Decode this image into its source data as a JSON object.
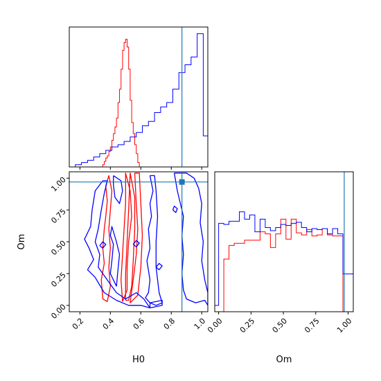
{
  "chart_data": [
    {
      "panel": "H0-marginal",
      "type": "histogram",
      "xlim": [
        0.13,
        1.04
      ],
      "x_ticks": [
        0.2,
        0.4,
        0.6,
        0.8,
        1.0
      ],
      "truth": 0.87,
      "series": [
        {
          "color": "#ff0000",
          "bins": [
            0.34,
            0.35,
            0.36,
            0.37,
            0.38,
            0.39,
            0.4,
            0.41,
            0.42,
            0.43,
            0.44,
            0.45,
            0.46,
            0.47,
            0.48,
            0.49,
            0.5,
            0.51,
            0.52,
            0.53,
            0.54,
            0.55,
            0.56,
            0.57,
            0.58,
            0.59,
            0.6
          ],
          "counts": [
            0,
            2,
            5,
            8,
            10,
            14,
            18,
            24,
            30,
            36,
            44,
            58,
            70,
            88,
            105,
            112,
            115,
            108,
            88,
            60,
            40,
            30,
            20,
            12,
            4,
            0
          ]
        },
        {
          "color": "#0000ff",
          "bins": [
            0.13,
            0.17,
            0.21,
            0.25,
            0.29,
            0.33,
            0.37,
            0.41,
            0.45,
            0.49,
            0.53,
            0.57,
            0.61,
            0.65,
            0.69,
            0.73,
            0.77,
            0.81,
            0.85,
            0.89,
            0.93,
            0.97,
            1.01,
            1.04
          ],
          "counts": [
            0,
            2,
            4,
            6,
            9,
            12,
            15,
            18,
            20,
            23,
            27,
            31,
            37,
            41,
            49,
            54,
            58,
            70,
            85,
            92,
            99,
            120,
            28
          ]
        }
      ]
    },
    {
      "panel": "Om-marginal",
      "type": "histogram",
      "xlim": [
        -0.03,
        1.04
      ],
      "x_ticks": [
        0.0,
        0.25,
        0.5,
        0.75,
        1.0
      ],
      "x_tick_labels": [
        "0.00",
        "0.25",
        "0.50",
        "0.75",
        "1.00"
      ],
      "xlabel": "Om",
      "truth": 0.97,
      "series": [
        {
          "color": "#ff0000",
          "bins": [
            0.0,
            0.04,
            0.08,
            0.12,
            0.16,
            0.2,
            0.24,
            0.28,
            0.32,
            0.36,
            0.4,
            0.44,
            0.48,
            0.52,
            0.56,
            0.6,
            0.64,
            0.68,
            0.72,
            0.76,
            0.8,
            0.84,
            0.88,
            0.92,
            0.96,
            1.0
          ],
          "counts": [
            0,
            50,
            63,
            65,
            65,
            68,
            68,
            68,
            76,
            74,
            61,
            74,
            88,
            69,
            88,
            75,
            73,
            78,
            72,
            73,
            79,
            73,
            72,
            72,
            0
          ]
        },
        {
          "color": "#0000ff",
          "bins": [
            -0.03,
            0.0,
            0.04,
            0.08,
            0.12,
            0.16,
            0.2,
            0.24,
            0.28,
            0.32,
            0.36,
            0.4,
            0.44,
            0.48,
            0.52,
            0.56,
            0.6,
            0.64,
            0.68,
            0.72,
            0.76,
            0.8,
            0.84,
            0.88,
            0.92,
            0.96,
            1.0,
            1.04
          ],
          "counts": [
            6,
            84,
            83,
            86,
            86,
            95,
            88,
            92,
            76,
            88,
            80,
            77,
            80,
            83,
            82,
            84,
            85,
            80,
            76,
            79,
            78,
            79,
            74,
            79,
            74,
            36,
            36
          ]
        }
      ]
    },
    {
      "panel": "joint",
      "type": "contour",
      "xlim": [
        0.13,
        1.04
      ],
      "ylim": [
        -0.05,
        1.05
      ],
      "x_ticks": [
        0.2,
        0.4,
        0.6,
        0.8,
        1.0
      ],
      "y_ticks": [
        0.0,
        0.25,
        0.5,
        0.75,
        1.0
      ],
      "y_tick_labels": [
        "0.00",
        "0.25",
        "0.50",
        "0.75",
        "1.00"
      ],
      "xlabel": "H0",
      "ylabel": "Om",
      "truth": {
        "x": 0.87,
        "y": 0.97
      },
      "series": [
        {
          "color": "#ff0000",
          "contours": [
            [
              [
                0.35,
                0.05
              ],
              [
                0.34,
                0.2
              ],
              [
                0.36,
                0.33
              ],
              [
                0.35,
                0.45
              ],
              [
                0.36,
                0.6
              ],
              [
                0.37,
                0.7
              ],
              [
                0.38,
                0.82
              ],
              [
                0.37,
                0.94
              ],
              [
                0.39,
                1.02
              ],
              [
                0.41,
                0.9
              ],
              [
                0.4,
                0.75
              ],
              [
                0.39,
                0.6
              ],
              [
                0.4,
                0.45
              ],
              [
                0.39,
                0.3
              ],
              [
                0.4,
                0.15
              ],
              [
                0.38,
                0.03
              ],
              [
                0.35,
                0.05
              ]
            ],
            [
              [
                0.48,
                0.03
              ],
              [
                0.47,
                0.2
              ],
              [
                0.48,
                0.4
              ],
              [
                0.49,
                0.6
              ],
              [
                0.5,
                0.8
              ],
              [
                0.5,
                1.04
              ],
              [
                0.53,
                0.9
              ],
              [
                0.54,
                0.7
              ],
              [
                0.52,
                0.5
              ],
              [
                0.51,
                0.3
              ],
              [
                0.51,
                0.12
              ],
              [
                0.48,
                0.03
              ]
            ],
            [
              [
                0.5,
                0.04
              ],
              [
                0.5,
                0.25
              ],
              [
                0.51,
                0.5
              ],
              [
                0.52,
                0.75
              ],
              [
                0.53,
                1.04
              ],
              [
                0.56,
                0.85
              ],
              [
                0.56,
                0.6
              ],
              [
                0.55,
                0.35
              ],
              [
                0.54,
                0.15
              ],
              [
                0.52,
                0.04
              ],
              [
                0.5,
                0.04
              ]
            ],
            [
              [
                0.56,
                1.04
              ],
              [
                0.57,
                0.8
              ],
              [
                0.58,
                0.6
              ],
              [
                0.57,
                0.4
              ],
              [
                0.55,
                0.2
              ],
              [
                0.53,
                0.02
              ],
              [
                0.58,
                0.08
              ],
              [
                0.6,
                0.3
              ],
              [
                0.61,
                0.55
              ],
              [
                0.6,
                0.8
              ],
              [
                0.59,
                1.04
              ],
              [
                0.56,
                1.04
              ]
            ]
          ]
        },
        {
          "color": "#0000ff",
          "contours": [
            [
              [
                0.35,
                0.98
              ],
              [
                0.3,
                0.9
              ],
              [
                0.28,
                0.75
              ],
              [
                0.27,
                0.62
              ],
              [
                0.23,
                0.52
              ],
              [
                0.26,
                0.45
              ],
              [
                0.29,
                0.36
              ],
              [
                0.25,
                0.28
              ],
              [
                0.3,
                0.22
              ],
              [
                0.36,
                0.1
              ],
              [
                0.44,
                0.04
              ],
              [
                0.52,
                0.0
              ],
              [
                0.6,
                0.0
              ],
              [
                0.66,
                -0.02
              ],
              [
                0.62,
                0.05
              ],
              [
                0.57,
                0.1
              ],
              [
                0.5,
                0.05
              ],
              [
                0.44,
                0.1
              ],
              [
                0.38,
                0.2
              ],
              [
                0.32,
                0.3
              ],
              [
                0.33,
                0.4
              ],
              [
                0.3,
                0.5
              ],
              [
                0.32,
                0.6
              ],
              [
                0.34,
                0.75
              ],
              [
                0.36,
                0.88
              ],
              [
                0.38,
                0.98
              ],
              [
                0.35,
                0.98
              ]
            ],
            [
              [
                0.42,
                1.02
              ],
              [
                0.42,
                0.95
              ],
              [
                0.43,
                0.85
              ],
              [
                0.46,
                0.8
              ],
              [
                0.48,
                0.9
              ],
              [
                0.47,
                0.98
              ],
              [
                0.42,
                1.02
              ]
            ],
            [
              [
                0.44,
                0.15
              ],
              [
                0.4,
                0.25
              ],
              [
                0.41,
                0.35
              ],
              [
                0.42,
                0.48
              ],
              [
                0.4,
                0.55
              ],
              [
                0.41,
                0.62
              ],
              [
                0.44,
                0.5
              ],
              [
                0.46,
                0.4
              ],
              [
                0.45,
                0.28
              ],
              [
                0.44,
                0.15
              ]
            ],
            [
              [
                0.66,
                1.02
              ],
              [
                0.68,
                0.9
              ],
              [
                0.66,
                0.8
              ],
              [
                0.67,
                0.7
              ],
              [
                0.65,
                0.6
              ],
              [
                0.66,
                0.45
              ],
              [
                0.64,
                0.35
              ],
              [
                0.66,
                0.2
              ],
              [
                0.65,
                0.1
              ],
              [
                0.63,
                0.06
              ],
              [
                0.66,
                0.02
              ],
              [
                0.7,
                0.0
              ],
              [
                0.74,
                0.02
              ],
              [
                0.72,
                0.1
              ],
              [
                0.7,
                0.3
              ],
              [
                0.7,
                0.5
              ],
              [
                0.71,
                0.7
              ],
              [
                0.7,
                0.9
              ],
              [
                0.69,
                1.02
              ],
              [
                0.66,
                1.02
              ]
            ],
            [
              [
                0.82,
                1.04
              ],
              [
                0.84,
                0.9
              ],
              [
                0.86,
                0.8
              ],
              [
                0.88,
                0.7
              ],
              [
                0.87,
                0.55
              ],
              [
                0.88,
                0.4
              ],
              [
                0.87,
                0.25
              ],
              [
                0.88,
                0.12
              ],
              [
                0.9,
                0.05
              ],
              [
                0.96,
                0.02
              ],
              [
                1.02,
                0.04
              ],
              [
                1.04,
                0.0
              ],
              [
                1.04,
                0.1
              ],
              [
                1.02,
                0.2
              ],
              [
                1.0,
                0.35
              ],
              [
                1.01,
                0.5
              ],
              [
                0.99,
                0.65
              ],
              [
                1.0,
                0.8
              ],
              [
                0.98,
                0.92
              ],
              [
                0.95,
                1.0
              ],
              [
                0.9,
                1.04
              ],
              [
                0.82,
                1.04
              ]
            ],
            [
              [
                0.7,
                0.3
              ],
              [
                0.72,
                0.28
              ],
              [
                0.74,
                0.31
              ],
              [
                0.72,
                0.33
              ],
              [
                0.7,
                0.3
              ]
            ],
            [
              [
                0.81,
                0.75
              ],
              [
                0.83,
                0.73
              ],
              [
                0.84,
                0.76
              ],
              [
                0.82,
                0.78
              ],
              [
                0.81,
                0.75
              ]
            ],
            [
              [
                0.33,
                0.47
              ],
              [
                0.35,
                0.45
              ],
              [
                0.37,
                0.48
              ],
              [
                0.35,
                0.5
              ],
              [
                0.33,
                0.47
              ]
            ],
            [
              [
                0.55,
                0.48
              ],
              [
                0.57,
                0.46
              ],
              [
                0.59,
                0.49
              ],
              [
                0.57,
                0.51
              ],
              [
                0.55,
                0.48
              ]
            ],
            [
              [
                0.66,
                -0.02
              ],
              [
                0.74,
                0.0
              ],
              [
                0.74,
                0.04
              ],
              [
                0.66,
                0.02
              ],
              [
                0.66,
                -0.02
              ]
            ]
          ]
        }
      ]
    }
  ],
  "colors": {
    "red": "#ff0000",
    "blue": "#0000ff",
    "truth": "#1f77b4"
  }
}
